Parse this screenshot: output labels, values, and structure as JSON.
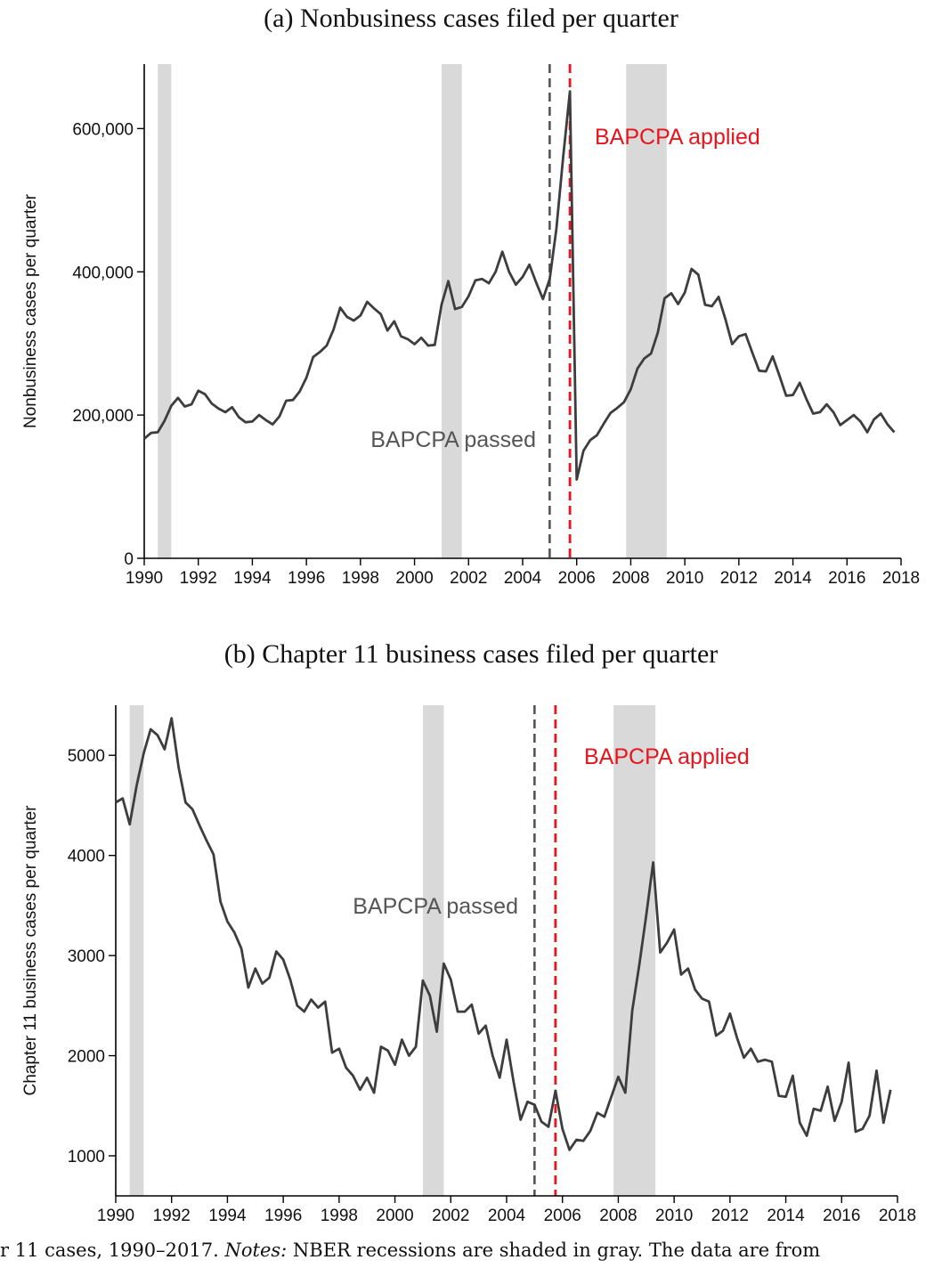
{
  "caption": {
    "lead": "r 11 cases, 1990–2017.",
    "notes_label": "Notes:",
    "text": "NBER recessions are shaded in gray. The data are from"
  },
  "colors": {
    "series": "#3d3d3d",
    "recession": "#d9d9d9",
    "passed": "#555555",
    "applied": "#e8141b"
  },
  "chart_data": [
    {
      "type": "line",
      "title": "(a) Nonbusiness cases filed per quarter",
      "xlabel": "",
      "ylabel": "Nonbusiness cases per quarter",
      "xlim": [
        1990,
        2018
      ],
      "ylim": [
        0,
        690000
      ],
      "x_ticks": [
        1990,
        1992,
        1994,
        1996,
        1998,
        2000,
        2002,
        2004,
        2006,
        2008,
        2010,
        2012,
        2014,
        2016,
        2018
      ],
      "y_ticks": [
        0,
        200000,
        400000,
        600000
      ],
      "y_tick_labels": [
        "0",
        "200,000",
        "400,000",
        "600,000"
      ],
      "grid": false,
      "recessions": [
        [
          1990.5,
          1991.0
        ],
        [
          2001.0,
          2001.75
        ],
        [
          2007.83,
          2009.33
        ]
      ],
      "annotations": [
        {
          "kind": "passed",
          "label": "BAPCPA passed",
          "x": 2005.0
        },
        {
          "kind": "applied",
          "label": "BAPCPA applied",
          "x": 2005.75
        }
      ],
      "x": [
        1990.0,
        1990.25,
        1990.5,
        1990.75,
        1991.0,
        1991.25,
        1991.5,
        1991.75,
        1992.0,
        1992.25,
        1992.5,
        1992.75,
        1993.0,
        1993.25,
        1993.5,
        1993.75,
        1994.0,
        1994.25,
        1994.5,
        1994.75,
        1995.0,
        1995.25,
        1995.5,
        1995.75,
        1996.0,
        1996.25,
        1996.5,
        1996.75,
        1997.0,
        1997.25,
        1997.5,
        1997.75,
        1998.0,
        1998.25,
        1998.5,
        1998.75,
        1999.0,
        1999.25,
        1999.5,
        1999.75,
        2000.0,
        2000.25,
        2000.5,
        2000.75,
        2001.0,
        2001.25,
        2001.5,
        2001.75,
        2002.0,
        2002.25,
        2002.5,
        2002.75,
        2003.0,
        2003.25,
        2003.5,
        2003.75,
        2004.0,
        2004.25,
        2004.5,
        2004.75,
        2005.0,
        2005.25,
        2005.5,
        2005.75,
        2006.0,
        2006.25,
        2006.5,
        2006.75,
        2007.0,
        2007.25,
        2007.5,
        2007.75,
        2008.0,
        2008.25,
        2008.5,
        2008.75,
        2009.0,
        2009.25,
        2009.5,
        2009.75,
        2010.0,
        2010.25,
        2010.5,
        2010.75,
        2011.0,
        2011.25,
        2011.5,
        2011.75,
        2012.0,
        2012.25,
        2012.5,
        2012.75,
        2013.0,
        2013.25,
        2013.5,
        2013.75,
        2014.0,
        2014.25,
        2014.5,
        2014.75,
        2015.0,
        2015.25,
        2015.5,
        2015.75,
        2016.0,
        2016.25,
        2016.5,
        2016.75,
        2017.0,
        2017.25,
        2017.5,
        2017.75
      ],
      "series": [
        {
          "values": [
            167000,
            175000,
            176000,
            192000,
            213000,
            224000,
            212000,
            215000,
            234000,
            229000,
            216000,
            209000,
            204000,
            211000,
            197000,
            190000,
            191000,
            200000,
            193000,
            187000,
            198000,
            220000,
            221000,
            233000,
            252000,
            281000,
            288000,
            297000,
            319000,
            350000,
            337000,
            332000,
            339000,
            358000,
            349000,
            341000,
            318000,
            331000,
            310000,
            306000,
            299000,
            308000,
            297000,
            298000,
            354000,
            387000,
            348000,
            351000,
            366000,
            388000,
            390000,
            384000,
            400000,
            428000,
            400000,
            382000,
            393000,
            410000,
            385000,
            362000,
            390000,
            460000,
            560000,
            652000,
            110000,
            150000,
            165000,
            172000,
            188000,
            203000,
            210000,
            218000,
            236000,
            265000,
            279000,
            286000,
            315000,
            363000,
            370000,
            355000,
            371000,
            404000,
            396000,
            354000,
            352000,
            365000,
            334000,
            299000,
            310000,
            313000,
            287000,
            262000,
            261000,
            282000,
            255000,
            227000,
            228000,
            245000,
            222000,
            202000,
            204000,
            215000,
            204000,
            186000,
            193000,
            200000,
            191000,
            176000,
            194000,
            202000,
            187000,
            176000
          ]
        }
      ]
    },
    {
      "type": "line",
      "title": "(b) Chapter 11 business cases filed per quarter",
      "xlabel": "",
      "ylabel": "Chapter 11 business cases per quarter",
      "xlim": [
        1990,
        2018
      ],
      "ylim": [
        600,
        5500
      ],
      "x_ticks": [
        1990,
        1992,
        1994,
        1996,
        1998,
        2000,
        2002,
        2004,
        2006,
        2008,
        2010,
        2012,
        2014,
        2016,
        2018
      ],
      "y_ticks": [
        1000,
        2000,
        3000,
        4000,
        5000
      ],
      "y_tick_labels": [
        "1000",
        "2000",
        "3000",
        "4000",
        "5000"
      ],
      "grid": false,
      "recessions": [
        [
          1990.5,
          1991.0
        ],
        [
          2001.0,
          2001.75
        ],
        [
          2007.83,
          2009.33
        ]
      ],
      "annotations": [
        {
          "kind": "passed",
          "label": "BAPCPA passed",
          "x": 2005.0
        },
        {
          "kind": "applied",
          "label": "BAPCPA applied",
          "x": 2005.75
        }
      ],
      "x": [
        1990.0,
        1990.25,
        1990.5,
        1990.75,
        1991.0,
        1991.25,
        1991.5,
        1991.75,
        1992.0,
        1992.25,
        1992.5,
        1992.75,
        1993.0,
        1993.25,
        1993.5,
        1993.75,
        1994.0,
        1994.25,
        1994.5,
        1994.75,
        1995.0,
        1995.25,
        1995.5,
        1995.75,
        1996.0,
        1996.25,
        1996.5,
        1996.75,
        1997.0,
        1997.25,
        1997.5,
        1997.75,
        1998.0,
        1998.25,
        1998.5,
        1998.75,
        1999.0,
        1999.25,
        1999.5,
        1999.75,
        2000.0,
        2000.25,
        2000.5,
        2000.75,
        2001.0,
        2001.25,
        2001.5,
        2001.75,
        2002.0,
        2002.25,
        2002.5,
        2002.75,
        2003.0,
        2003.25,
        2003.5,
        2003.75,
        2004.0,
        2004.25,
        2004.5,
        2004.75,
        2005.0,
        2005.25,
        2005.5,
        2005.75,
        2006.0,
        2006.25,
        2006.5,
        2006.75,
        2007.0,
        2007.25,
        2007.5,
        2007.75,
        2008.0,
        2008.25,
        2008.5,
        2008.75,
        2009.0,
        2009.25,
        2009.5,
        2009.75,
        2010.0,
        2010.25,
        2010.5,
        2010.75,
        2011.0,
        2011.25,
        2011.5,
        2011.75,
        2012.0,
        2012.25,
        2012.5,
        2012.75,
        2013.0,
        2013.25,
        2013.5,
        2013.75,
        2014.0,
        2014.25,
        2014.5,
        2014.75,
        2015.0,
        2015.25,
        2015.5,
        2015.75,
        2016.0,
        2016.25,
        2016.5,
        2016.75,
        2017.0,
        2017.25,
        2017.5,
        2017.75
      ],
      "series": [
        {
          "values": [
            4530,
            4570,
            4310,
            4700,
            5020,
            5260,
            5200,
            5060,
            5370,
            4880,
            4530,
            4460,
            4300,
            4150,
            4010,
            3540,
            3340,
            3230,
            3070,
            2680,
            2870,
            2720,
            2780,
            3040,
            2960,
            2760,
            2500,
            2440,
            2560,
            2480,
            2540,
            2030,
            2070,
            1880,
            1800,
            1660,
            1780,
            1630,
            2090,
            2050,
            1910,
            2160,
            2000,
            2090,
            2750,
            2600,
            2240,
            2920,
            2760,
            2440,
            2440,
            2510,
            2220,
            2300,
            2000,
            1780,
            2160,
            1740,
            1360,
            1540,
            1510,
            1340,
            1290,
            1650,
            1270,
            1060,
            1160,
            1150,
            1250,
            1430,
            1390,
            1590,
            1790,
            1630,
            2450,
            2900,
            3400,
            3930,
            3030,
            3130,
            3260,
            2810,
            2870,
            2660,
            2570,
            2540,
            2200,
            2250,
            2420,
            2180,
            1980,
            2070,
            1940,
            1960,
            1940,
            1600,
            1590,
            1800,
            1330,
            1200,
            1470,
            1450,
            1690,
            1350,
            1540,
            1930,
            1240,
            1270,
            1400,
            1850,
            1330,
            1660
          ]
        }
      ]
    }
  ]
}
